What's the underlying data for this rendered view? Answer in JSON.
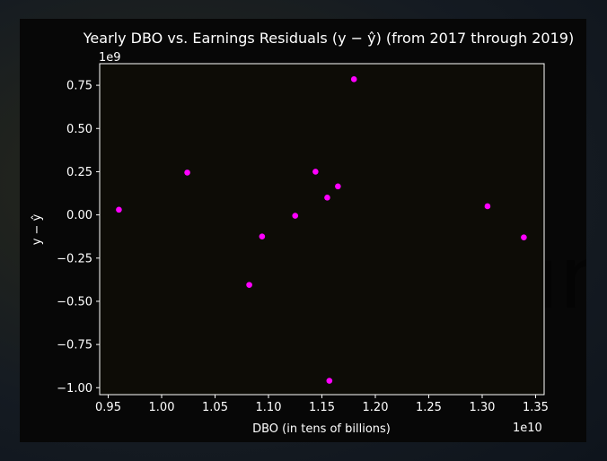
{
  "chart_data": {
    "type": "scatter",
    "title": "Yearly DBO vs. Earnings Residuals (y − ŷ) (from 2017 through 2019)",
    "xlabel": "DBO (in tens of billions)",
    "ylabel": "y − ŷ",
    "x_offset_text": "1e10",
    "y_offset_text": "1e9",
    "xlim": [
      0.942,
      1.358
    ],
    "ylim": [
      -1.04,
      0.875
    ],
    "xticks": [
      0.95,
      1.0,
      1.05,
      1.1,
      1.15,
      1.2,
      1.25,
      1.3,
      1.35
    ],
    "xtick_labels": [
      "0.95",
      "1.00",
      "1.05",
      "1.10",
      "1.15",
      "1.20",
      "1.25",
      "1.30",
      "1.35"
    ],
    "yticks": [
      0.75,
      0.5,
      0.25,
      0.0,
      -0.25,
      -0.5,
      -0.75,
      -1.0
    ],
    "ytick_labels": [
      "0.75",
      "0.50",
      "0.25",
      "0.00",
      "−0.25",
      "−0.50",
      "−0.75",
      "−1.00"
    ],
    "points": [
      {
        "x": 0.96,
        "y": 0.03
      },
      {
        "x": 1.024,
        "y": 0.245
      },
      {
        "x": 1.082,
        "y": -0.405
      },
      {
        "x": 1.094,
        "y": -0.125
      },
      {
        "x": 1.125,
        "y": -0.005
      },
      {
        "x": 1.144,
        "y": 0.25
      },
      {
        "x": 1.155,
        "y": 0.1
      },
      {
        "x": 1.157,
        "y": -0.96
      },
      {
        "x": 1.165,
        "y": 0.165
      },
      {
        "x": 1.18,
        "y": 0.785
      },
      {
        "x": 1.305,
        "y": 0.05
      },
      {
        "x": 1.339,
        "y": -0.13
      }
    ],
    "marker_color": "#ff00ff",
    "grid": false,
    "legend": "none"
  },
  "colors": {
    "figure_bg": "#070707",
    "axes_bg": "#0d0c06",
    "text": "#ffffff",
    "spine": "#ffffff"
  }
}
